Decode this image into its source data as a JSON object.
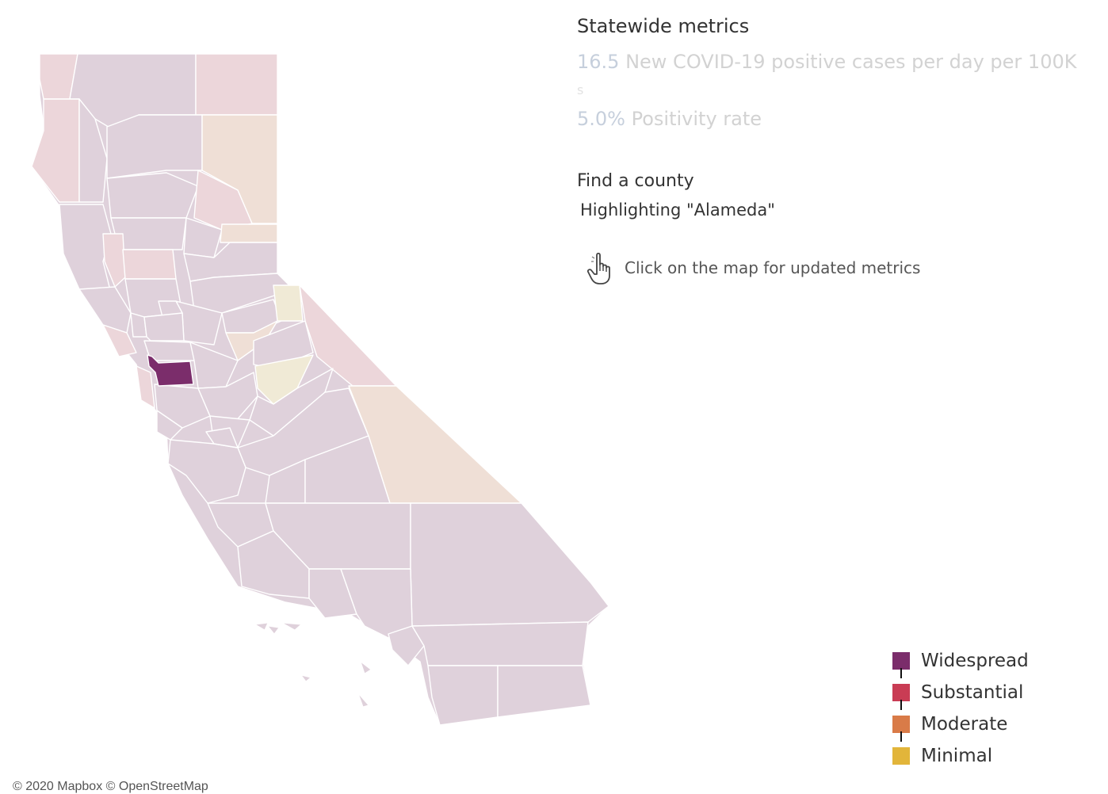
{
  "statewide": {
    "title": "Statewide metrics",
    "cases_value": "16.5",
    "cases_label": "New COVID-19 positive cases per day per 100K",
    "cases_label_overflow": "s",
    "positivity_value": "5.0%",
    "positivity_label": "Positivity rate"
  },
  "find_county": {
    "title": "Find a county",
    "highlight": "Highlighting \"Alameda\""
  },
  "hint": {
    "icon": "pointing-hand-icon",
    "text": "Click on the map for updated metrics"
  },
  "legend": [
    {
      "label": "Widespread",
      "color": "#7b2d6b"
    },
    {
      "label": "Substantial",
      "color": "#c93c54"
    },
    {
      "label": "Moderate",
      "color": "#d97b48"
    },
    {
      "label": "Minimal",
      "color": "#e2b53a"
    }
  ],
  "map": {
    "attribution": "© 2020 Mapbox © OpenStreetMap",
    "dimmed_colors": {
      "widespread": "#dfd1db",
      "substantial": "#ecd6da",
      "moderate": "#efdfd6",
      "minimal": "#f0ead6"
    },
    "highlighted_county": "Alameda",
    "highlight_color": "#7b2d6b"
  }
}
